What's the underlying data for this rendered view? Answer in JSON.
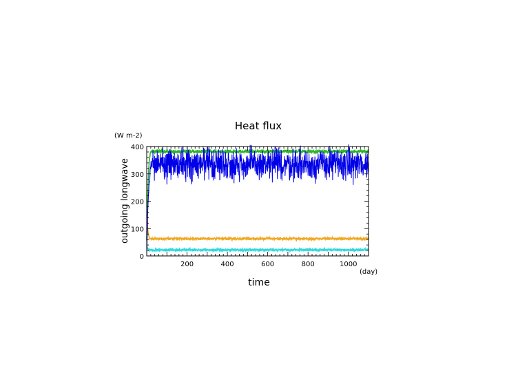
{
  "chart_data": {
    "type": "line",
    "title": "Heat flux",
    "ylabel": "outgoing longwave",
    "yunit": "(W m-2)",
    "xlabel": "time",
    "xunit": "(day)",
    "xlim": [
      0,
      1100
    ],
    "ylim": [
      0,
      400
    ],
    "xticks": [
      200,
      400,
      600,
      800,
      1000
    ],
    "yticks": [
      0,
      100,
      200,
      300,
      400
    ],
    "grid": false,
    "legend": "none",
    "series": [
      {
        "color": "#2bb52b",
        "start": 60,
        "level": 382,
        "noise": 3,
        "spin_up_days": 25,
        "x": [
          0,
          1100
        ]
      },
      {
        "color": "#f0a820",
        "start": 150,
        "level": 63,
        "noise": 2,
        "spin_up_days": 20,
        "x": [
          0,
          1100
        ]
      },
      {
        "color": "#30d8e0",
        "start": 38,
        "level": 22,
        "noise": 2,
        "spin_up_days": 15,
        "x": [
          0,
          1100
        ]
      },
      {
        "color": "#0000e8",
        "start": 0,
        "level": 335,
        "noise": 28,
        "spin_up_days": 30,
        "x": [
          0,
          1100
        ]
      }
    ]
  }
}
